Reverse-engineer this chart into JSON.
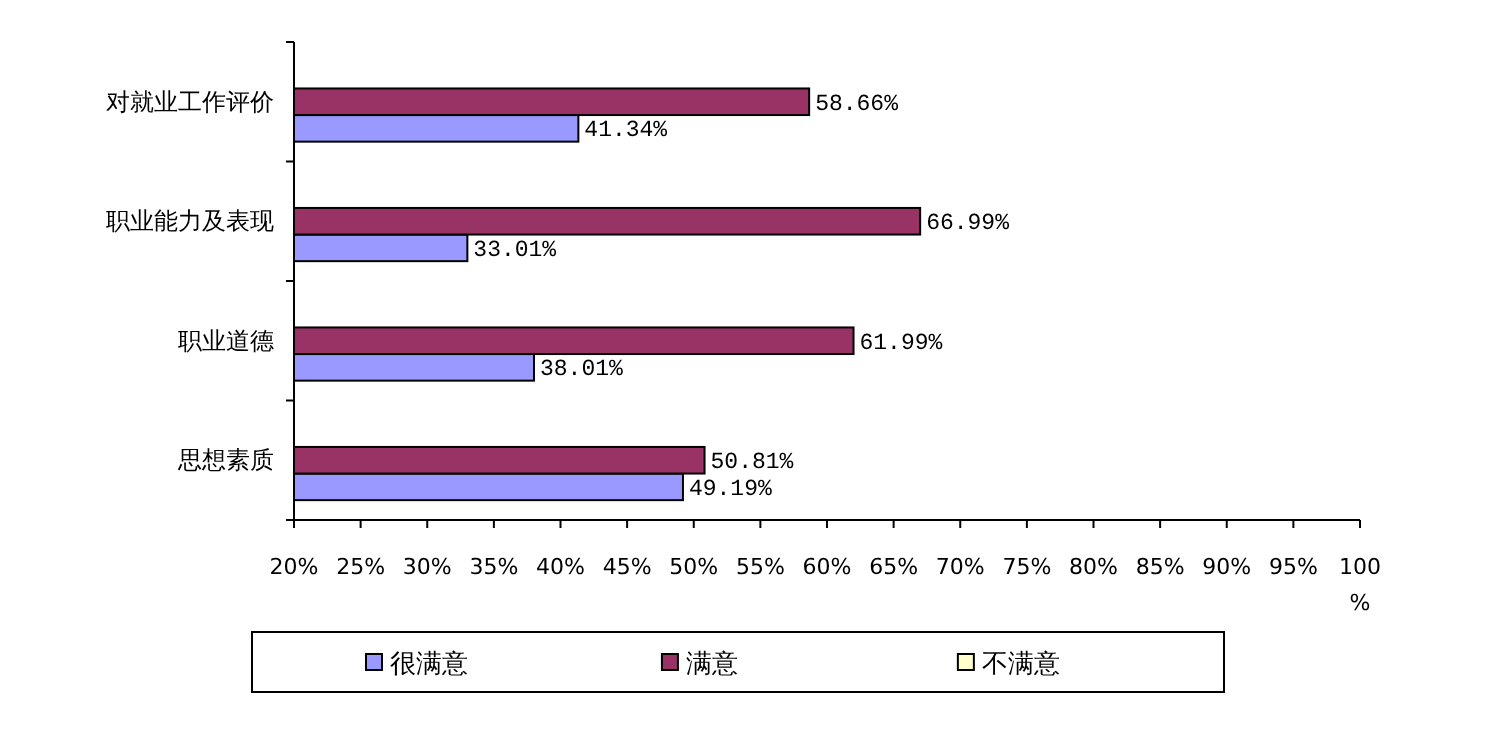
{
  "chart_data": {
    "type": "bar",
    "orientation": "horizontal",
    "categories": [
      "对就业工作评价",
      "职业能力及表现",
      "职业道德",
      "思想素质"
    ],
    "series": [
      {
        "name": "很满意",
        "color": "#9999ff",
        "values": [
          41.34,
          33.01,
          38.01,
          49.19
        ],
        "value_labels": [
          "41.34%",
          "33.01%",
          "38.01%",
          "49.19%"
        ]
      },
      {
        "name": "满意",
        "color": "#993366",
        "values": [
          58.66,
          66.99,
          61.99,
          50.81
        ],
        "value_labels": [
          "58.66%",
          "66.99%",
          "61.99%",
          "50.81%"
        ]
      },
      {
        "name": "不满意",
        "color": "#ffffcc",
        "values": [
          null,
          null,
          null,
          null
        ]
      }
    ],
    "xlim": [
      20,
      100
    ],
    "xticks": [
      {
        "value": 20,
        "label": "20%"
      },
      {
        "value": 25,
        "label": "25%"
      },
      {
        "value": 30,
        "label": "30%"
      },
      {
        "value": 35,
        "label": "35%"
      },
      {
        "value": 40,
        "label": "40%"
      },
      {
        "value": 45,
        "label": "45%"
      },
      {
        "value": 50,
        "label": "50%"
      },
      {
        "value": 55,
        "label": "55%"
      },
      {
        "value": 60,
        "label": "60%"
      },
      {
        "value": 65,
        "label": "65%"
      },
      {
        "value": 70,
        "label": "70%"
      },
      {
        "value": 75,
        "label": "75%"
      },
      {
        "value": 80,
        "label": "80%"
      },
      {
        "value": 85,
        "label": "85%"
      },
      {
        "value": 90,
        "label": "90%"
      },
      {
        "value": 95,
        "label": "95%"
      },
      {
        "value": 100,
        "label": "100%"
      }
    ],
    "grid": false,
    "legend": "bottom"
  }
}
